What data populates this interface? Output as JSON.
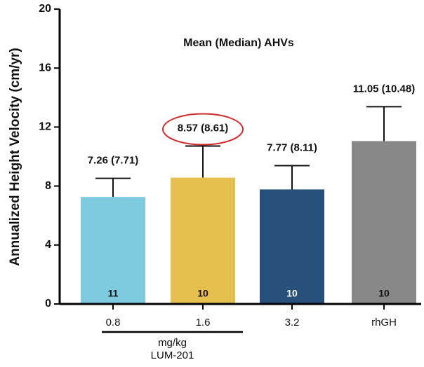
{
  "chart_data": {
    "type": "bar",
    "title": "Mean (Median) AHVs",
    "y_label": "Annualized Height Velocity (cm/yr)",
    "categories": [
      "0.8",
      "1.6",
      "3.2",
      "rhGH"
    ],
    "values": [
      7.26,
      8.57,
      7.77,
      11.05
    ],
    "value_labels": [
      "7.26 (7.71)",
      "8.57 (8.61)",
      "7.77 (8.11)",
      "11.05 (10.48)"
    ],
    "errors": [
      1.26,
      2.14,
      1.61,
      2.33
    ],
    "n": [
      11,
      10,
      10,
      10
    ],
    "colors": [
      "#7ecbe0",
      "#e5c04f",
      "#27507a",
      "#888888"
    ],
    "n_label_colors": [
      "#111111",
      "#111111",
      "#ffffff",
      "#111111"
    ],
    "highlight": 1,
    "group": {
      "categories": [
        0,
        2
      ],
      "labels": [
        "mg/kg",
        "LUM-201"
      ]
    },
    "ylim": [
      0,
      20
    ],
    "yticks": [
      0,
      4,
      8,
      12,
      16,
      20
    ]
  }
}
